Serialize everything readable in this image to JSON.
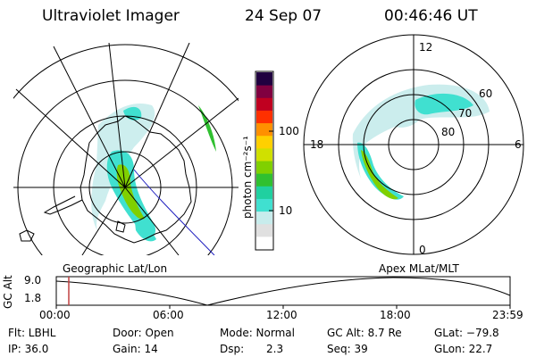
{
  "header": {
    "instrument": "Ultraviolet Imager",
    "date": "24 Sep 07",
    "time": "00:46:46 UT"
  },
  "maps": {
    "left_label": "Geographic Lat/Lon",
    "right_label": "Apex MLat/MLT",
    "mlt_labels": [
      "12",
      "18",
      "6",
      "0"
    ],
    "mlat_labels": [
      "60",
      "70",
      "80"
    ]
  },
  "colorbar": {
    "unit_label": "photon cm⁻²s⁻¹",
    "ticks": [
      "100",
      "10"
    ],
    "colors": [
      "#ffffff",
      "#e0e0e0",
      "#c8ecec",
      "#40e0d0",
      "#20d0a0",
      "#30c030",
      "#80d000",
      "#d0e000",
      "#ffd000",
      "#ff9000",
      "#ff3000",
      "#c00020",
      "#800040",
      "#200040"
    ]
  },
  "timeline": {
    "axis_label": "GC Alt",
    "y_max": "9.0",
    "y_min": "1.8",
    "ticks": [
      "00:00",
      "06:00",
      "12:00",
      "18:00",
      "23:59"
    ],
    "marker_color": "#c04040"
  },
  "info": {
    "flt": "Flt: LBHL",
    "ip": "IP: 36.0",
    "door": "Door: Open",
    "gain": "Gain: 14",
    "mode": "Mode: Normal",
    "dsp_label": "Dsp:",
    "dsp_value": "2.3",
    "gc_alt": "GC Alt: 8.7 Re",
    "seq": "Seq: 39",
    "glat": "GLat: −79.8",
    "glon": "GLon:  22.7"
  }
}
